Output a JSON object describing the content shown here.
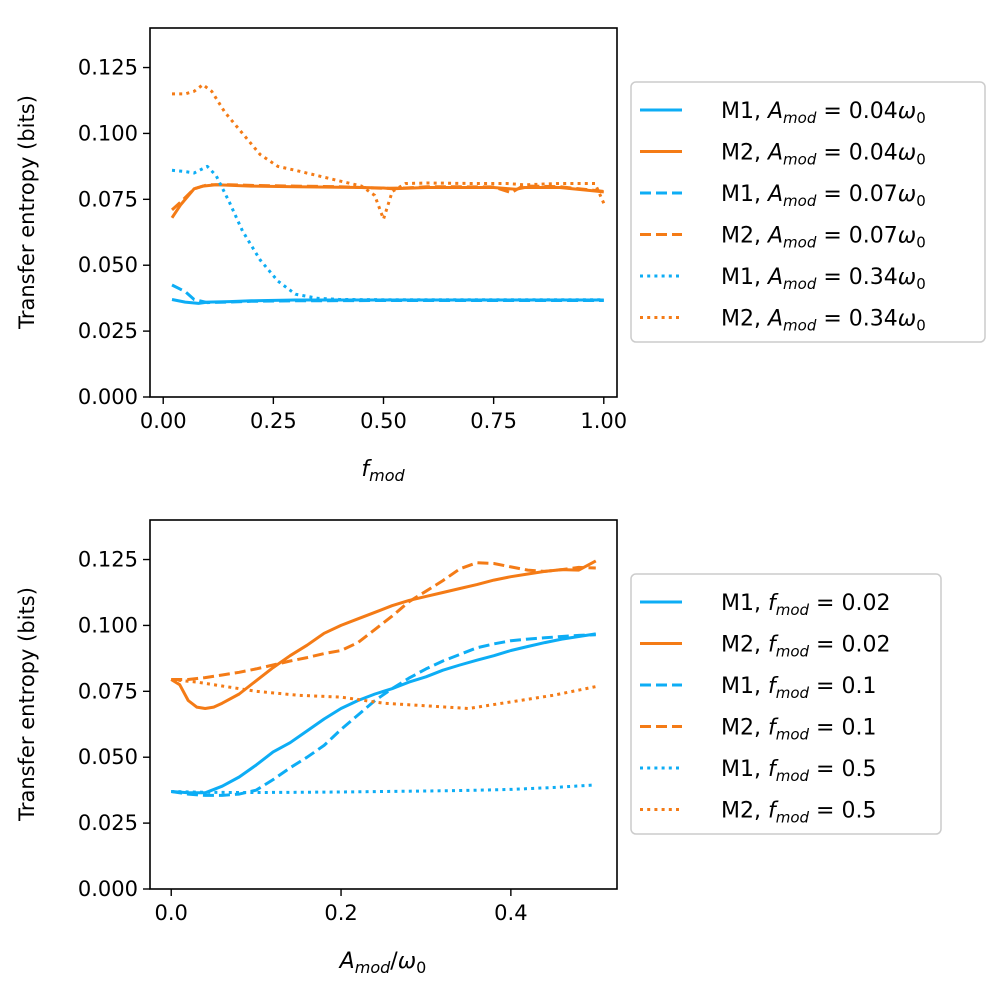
{
  "colors": {
    "m1": "#0dadf5",
    "m2": "#f47b16",
    "axis": "#000000",
    "legend_border": "#cccccc"
  },
  "chart_data": [
    {
      "type": "line",
      "xlabel": "f_mod",
      "ylabel": "Transfer entropy (bits)",
      "xlim": [
        -0.03,
        1.03
      ],
      "ylim": [
        0,
        0.14
      ],
      "xticks": [
        0,
        0.25,
        0.5,
        0.75,
        1.0
      ],
      "xtick_labels": [
        "0.00",
        "0.25",
        "0.50",
        "0.75",
        "1.00"
      ],
      "yticks": [
        0,
        0.025,
        0.05,
        0.075,
        0.1,
        0.125
      ],
      "ytick_labels": [
        "0.000",
        "0.025",
        "0.050",
        "0.075",
        "0.100",
        "0.125"
      ],
      "legend_position": "right",
      "series": [
        {
          "model": "M1",
          "param": "A",
          "value": "0.04",
          "style": "solid",
          "color": "m1",
          "x": [
            0.02,
            0.05,
            0.08,
            0.1,
            0.15,
            0.2,
            0.3,
            0.5,
            0.7,
            0.9,
            1.0
          ],
          "y": [
            0.037,
            0.036,
            0.0355,
            0.036,
            0.0362,
            0.0365,
            0.0368,
            0.0368,
            0.0368,
            0.0368,
            0.0368
          ]
        },
        {
          "model": "M2",
          "param": "A",
          "value": "0.04",
          "style": "solid",
          "color": "m2",
          "x": [
            0.02,
            0.04,
            0.07,
            0.09,
            0.12,
            0.2,
            0.3,
            0.45,
            0.5,
            0.52,
            0.6,
            0.75,
            0.8,
            0.82,
            0.9,
            1.0
          ],
          "y": [
            0.068,
            0.073,
            0.079,
            0.08,
            0.0805,
            0.08,
            0.0798,
            0.0795,
            0.0793,
            0.079,
            0.0795,
            0.0795,
            0.0788,
            0.0795,
            0.0795,
            0.0778
          ]
        },
        {
          "model": "M1",
          "param": "A",
          "value": "0.07",
          "style": "dashed",
          "color": "m1",
          "x": [
            0.02,
            0.05,
            0.07,
            0.1,
            0.15,
            0.2,
            0.3,
            0.5,
            0.7,
            0.9,
            1.0
          ],
          "y": [
            0.0425,
            0.04,
            0.037,
            0.0358,
            0.036,
            0.0363,
            0.0365,
            0.0366,
            0.0366,
            0.0366,
            0.0366
          ]
        },
        {
          "model": "M2",
          "param": "A",
          "value": "0.07",
          "style": "dashed",
          "color": "m2",
          "x": [
            0.02,
            0.04,
            0.07,
            0.1,
            0.15,
            0.2,
            0.3,
            0.4,
            0.45,
            0.5,
            0.55,
            0.6,
            0.75,
            0.79,
            0.81,
            0.83,
            0.9,
            1.0
          ],
          "y": [
            0.071,
            0.074,
            0.079,
            0.0805,
            0.0805,
            0.0803,
            0.08,
            0.0798,
            0.0795,
            0.0792,
            0.0793,
            0.0798,
            0.0797,
            0.0775,
            0.0795,
            0.08,
            0.0798,
            0.078
          ]
        },
        {
          "model": "M1",
          "param": "A",
          "value": "0.34",
          "style": "dotted",
          "color": "m1",
          "x": [
            0.02,
            0.05,
            0.07,
            0.1,
            0.12,
            0.15,
            0.18,
            0.22,
            0.26,
            0.3,
            0.35,
            0.4,
            0.5,
            0.7,
            0.9,
            1.0
          ],
          "y": [
            0.086,
            0.0855,
            0.085,
            0.0875,
            0.084,
            0.074,
            0.063,
            0.052,
            0.044,
            0.039,
            0.0375,
            0.037,
            0.0369,
            0.0369,
            0.0369,
            0.0369
          ]
        },
        {
          "model": "M2",
          "param": "A",
          "value": "0.34",
          "style": "dotted",
          "color": "m2",
          "x": [
            0.02,
            0.05,
            0.07,
            0.09,
            0.11,
            0.14,
            0.18,
            0.22,
            0.26,
            0.3,
            0.35,
            0.4,
            0.45,
            0.48,
            0.5,
            0.52,
            0.55,
            0.6,
            0.7,
            0.78,
            0.82,
            0.9,
            0.98,
            1.0
          ],
          "y": [
            0.115,
            0.115,
            0.116,
            0.1185,
            0.116,
            0.108,
            0.1,
            0.092,
            0.0875,
            0.086,
            0.084,
            0.082,
            0.08,
            0.0765,
            0.0675,
            0.078,
            0.081,
            0.0812,
            0.081,
            0.081,
            0.0805,
            0.081,
            0.081,
            0.0735
          ]
        }
      ]
    },
    {
      "type": "line",
      "xlabel": "A_mod/ω_0",
      "ylabel": "Transfer entropy (bits)",
      "xlim": [
        -0.025,
        0.525
      ],
      "ylim": [
        0,
        0.14
      ],
      "xticks": [
        0,
        0.2,
        0.4
      ],
      "xtick_labels": [
        "0.0",
        "0.2",
        "0.4"
      ],
      "yticks": [
        0,
        0.025,
        0.05,
        0.075,
        0.1,
        0.125
      ],
      "ytick_labels": [
        "0.000",
        "0.025",
        "0.050",
        "0.075",
        "0.100",
        "0.125"
      ],
      "legend_position": "right",
      "series": [
        {
          "model": "M1",
          "param": "f",
          "value": "0.02",
          "style": "solid",
          "color": "m1",
          "x": [
            0,
            0.02,
            0.04,
            0.06,
            0.08,
            0.1,
            0.12,
            0.14,
            0.16,
            0.18,
            0.2,
            0.22,
            0.24,
            0.26,
            0.28,
            0.3,
            0.32,
            0.34,
            0.36,
            0.38,
            0.4,
            0.42,
            0.44,
            0.46,
            0.48,
            0.5
          ],
          "y": [
            0.037,
            0.0365,
            0.0365,
            0.039,
            0.0425,
            0.047,
            0.052,
            0.0555,
            0.06,
            0.0645,
            0.0685,
            0.0715,
            0.074,
            0.076,
            0.0785,
            0.0805,
            0.083,
            0.085,
            0.0868,
            0.0885,
            0.0905,
            0.092,
            0.0935,
            0.0948,
            0.0958,
            0.0968
          ]
        },
        {
          "model": "M2",
          "param": "f",
          "value": "0.02",
          "style": "solid",
          "color": "m2",
          "x": [
            0,
            0.01,
            0.02,
            0.03,
            0.04,
            0.05,
            0.06,
            0.08,
            0.1,
            0.12,
            0.14,
            0.16,
            0.18,
            0.2,
            0.22,
            0.24,
            0.26,
            0.28,
            0.3,
            0.32,
            0.34,
            0.36,
            0.38,
            0.4,
            0.42,
            0.44,
            0.46,
            0.48,
            0.5
          ],
          "y": [
            0.0795,
            0.0775,
            0.0715,
            0.069,
            0.0685,
            0.069,
            0.0705,
            0.074,
            0.079,
            0.084,
            0.0885,
            0.0925,
            0.097,
            0.1,
            0.1025,
            0.105,
            0.1075,
            0.1095,
            0.111,
            0.1125,
            0.114,
            0.1155,
            0.1172,
            0.1185,
            0.1195,
            0.1205,
            0.1212,
            0.121,
            0.1245
          ]
        },
        {
          "model": "M1",
          "param": "f",
          "value": "0.1",
          "style": "dashed",
          "color": "m1",
          "x": [
            0,
            0.02,
            0.04,
            0.06,
            0.08,
            0.1,
            0.12,
            0.14,
            0.16,
            0.18,
            0.2,
            0.22,
            0.24,
            0.26,
            0.28,
            0.3,
            0.32,
            0.34,
            0.36,
            0.38,
            0.4,
            0.42,
            0.44,
            0.46,
            0.48,
            0.5
          ],
          "y": [
            0.037,
            0.036,
            0.0355,
            0.0355,
            0.036,
            0.0375,
            0.0415,
            0.046,
            0.05,
            0.0545,
            0.0605,
            0.066,
            0.0715,
            0.076,
            0.08,
            0.0835,
            0.0865,
            0.089,
            0.0915,
            0.093,
            0.0942,
            0.0948,
            0.0953,
            0.0958,
            0.0962,
            0.0965
          ]
        },
        {
          "model": "M2",
          "param": "f",
          "value": "0.1",
          "style": "dashed",
          "color": "m2",
          "x": [
            0,
            0.02,
            0.04,
            0.06,
            0.08,
            0.1,
            0.12,
            0.14,
            0.16,
            0.18,
            0.2,
            0.22,
            0.24,
            0.26,
            0.28,
            0.3,
            0.32,
            0.34,
            0.36,
            0.38,
            0.4,
            0.42,
            0.44,
            0.46,
            0.48,
            0.5
          ],
          "y": [
            0.0795,
            0.0795,
            0.0802,
            0.0812,
            0.0822,
            0.0835,
            0.085,
            0.0865,
            0.0878,
            0.0893,
            0.0905,
            0.0935,
            0.0985,
            0.1035,
            0.109,
            0.113,
            0.117,
            0.1215,
            0.1238,
            0.1235,
            0.1222,
            0.121,
            0.1205,
            0.1212,
            0.122,
            0.1218
          ]
        },
        {
          "model": "M1",
          "param": "f",
          "value": "0.5",
          "style": "dotted",
          "color": "m1",
          "x": [
            0,
            0.04,
            0.08,
            0.1,
            0.15,
            0.2,
            0.25,
            0.3,
            0.35,
            0.4,
            0.45,
            0.5
          ],
          "y": [
            0.037,
            0.0367,
            0.0366,
            0.0366,
            0.0367,
            0.0368,
            0.037,
            0.0372,
            0.0374,
            0.0378,
            0.0385,
            0.0395
          ]
        },
        {
          "model": "M2",
          "param": "f",
          "value": "0.5",
          "style": "dotted",
          "color": "m2",
          "x": [
            0,
            0.03,
            0.06,
            0.1,
            0.15,
            0.2,
            0.25,
            0.3,
            0.35,
            0.4,
            0.45,
            0.5
          ],
          "y": [
            0.0795,
            0.0785,
            0.077,
            0.075,
            0.0735,
            0.0728,
            0.0705,
            0.0695,
            0.0685,
            0.071,
            0.0735,
            0.0768
          ]
        }
      ]
    }
  ]
}
